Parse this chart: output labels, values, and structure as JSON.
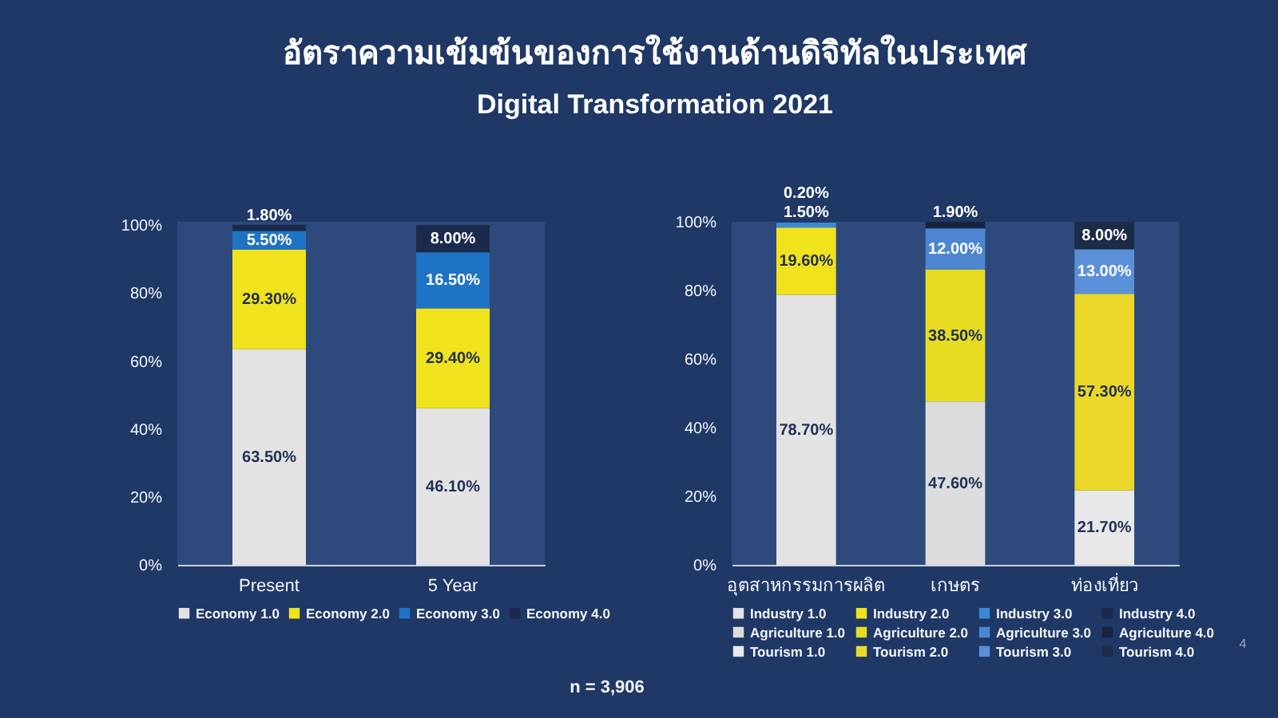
{
  "chart_data": [
    {
      "type": "other",
      "title": "อัตราความเข้มข้นของการใช้งานด้านดิจิทัลในประเทศ",
      "subtitle": "Digital Transformation 2021"
    },
    {
      "type": "bar",
      "categories": [
        "Present",
        "5 Year"
      ],
      "stacked": true,
      "series": [
        {
          "name": "Economy 1.0",
          "color": "#e3e3e3",
          "values": [
            63.5,
            46.1
          ],
          "value_labels": [
            "63.50%",
            "46.10%"
          ]
        },
        {
          "name": "Economy 2.0",
          "color": "#f0e21c",
          "values": [
            29.3,
            29.4
          ],
          "value_labels": [
            "29.30%",
            "29.40%"
          ]
        },
        {
          "name": "Economy 3.0",
          "color": "#1f73c4",
          "values": [
            5.5,
            16.5
          ],
          "value_labels": [
            "5.50%",
            "16.50%"
          ]
        },
        {
          "name": "Economy 4.0",
          "color": "#1a2a4c",
          "values": [
            1.8,
            8.0
          ],
          "value_labels": [
            "1.80%",
            "8.00%"
          ]
        }
      ],
      "ylim": [
        0,
        101
      ],
      "yticks": [
        {
          "value": 0,
          "label": "0%"
        },
        {
          "value": 20,
          "label": "20%"
        },
        {
          "value": 40,
          "label": "40%"
        },
        {
          "value": 60,
          "label": "60%"
        },
        {
          "value": 80,
          "label": "80%"
        },
        {
          "value": 100,
          "label": "100%"
        }
      ],
      "grid": false,
      "legend": "bottom",
      "annotations": [
        "n = 3,906"
      ]
    },
    {
      "type": "bar",
      "categories": [
        "อุตสาหกรรมการผลิต",
        "เกษตร",
        "ท่องเที่ยว"
      ],
      "stacked": true,
      "series": [
        {
          "name": "Industry 1.0",
          "color": "#e3e3e3",
          "values": [
            78.7,
            null,
            null
          ],
          "value_labels": [
            "78.70%",
            null,
            null
          ]
        },
        {
          "name": "Industry 2.0",
          "color": "#f0e21c",
          "values": [
            19.6,
            null,
            null
          ],
          "value_labels": [
            "19.60%",
            null,
            null
          ]
        },
        {
          "name": "Industry 3.0",
          "color": "#3a8ad6",
          "values": [
            1.5,
            null,
            null
          ],
          "value_labels": [
            "1.50%",
            null,
            null
          ]
        },
        {
          "name": "Industry 4.0",
          "color": "#1a2a4c",
          "values": [
            0.2,
            null,
            null
          ],
          "value_labels": [
            "0.20%",
            null,
            null
          ]
        },
        {
          "name": "Agriculture 1.0",
          "color": "#dcdcdc",
          "values": [
            null,
            47.6,
            null
          ],
          "value_labels": [
            null,
            "47.60%",
            null
          ]
        },
        {
          "name": "Agriculture 2.0",
          "color": "#e8dc22",
          "values": [
            null,
            38.5,
            null
          ],
          "value_labels": [
            null,
            "38.50%",
            null
          ]
        },
        {
          "name": "Agriculture 3.0",
          "color": "#4d86d0",
          "values": [
            null,
            12.0,
            null
          ],
          "value_labels": [
            null,
            "12.00%",
            null
          ]
        },
        {
          "name": "Agriculture 4.0",
          "color": "#172440",
          "values": [
            null,
            1.9,
            null
          ],
          "value_labels": [
            null,
            "1.90%",
            null
          ]
        },
        {
          "name": "Tourism 1.0",
          "color": "#e8e8e8",
          "values": [
            null,
            null,
            21.7
          ],
          "value_labels": [
            null,
            null,
            "21.70%"
          ]
        },
        {
          "name": "Tourism 2.0",
          "color": "#ecd82a",
          "values": [
            null,
            null,
            57.3
          ],
          "value_labels": [
            null,
            null,
            "57.30%"
          ]
        },
        {
          "name": "Tourism 3.0",
          "color": "#5a90d8",
          "values": [
            null,
            null,
            13.0
          ],
          "value_labels": [
            null,
            null,
            "13.00%"
          ]
        },
        {
          "name": "Tourism 4.0",
          "color": "#1c2b48",
          "values": [
            null,
            null,
            8.0
          ],
          "value_labels": [
            null,
            null,
            "8.00%"
          ]
        }
      ],
      "ylim": [
        0,
        100
      ],
      "yticks": [
        {
          "value": 0,
          "label": "0%"
        },
        {
          "value": 20,
          "label": "20%"
        },
        {
          "value": 40,
          "label": "40%"
        },
        {
          "value": 60,
          "label": "60%"
        },
        {
          "value": 80,
          "label": "80%"
        },
        {
          "value": 100,
          "label": "100%"
        }
      ],
      "grid": false,
      "legend": "bottom",
      "annotations": [
        "4"
      ]
    }
  ]
}
